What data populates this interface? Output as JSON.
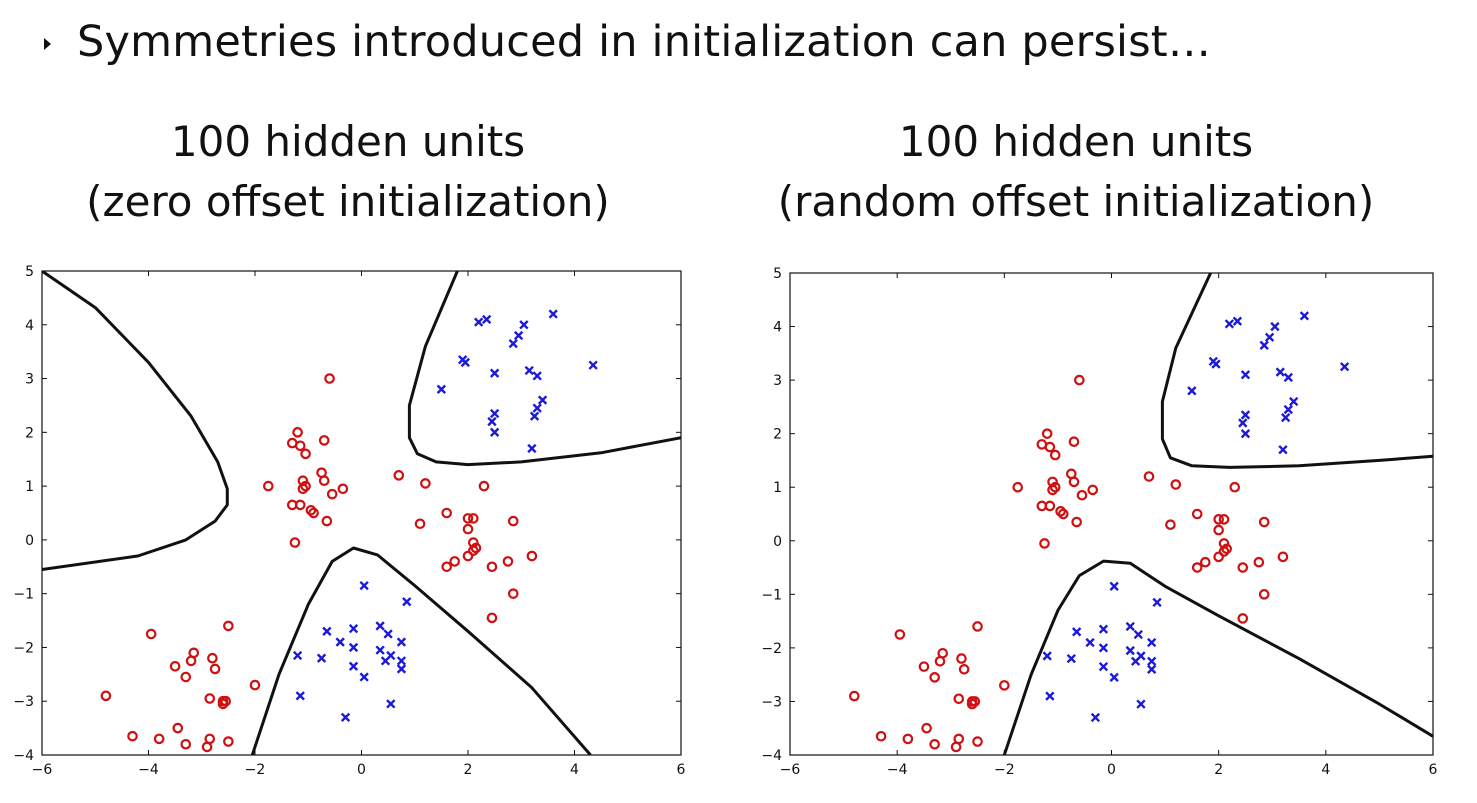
{
  "bullet": {
    "text": "Symmetries introduced in initialization can persist…"
  },
  "colors": {
    "class_o": "#d01010",
    "class_x": "#1a1ad8",
    "boundary": "#111111"
  },
  "chart_data": [
    {
      "type": "scatter",
      "title_line1": "100 hidden units",
      "title_line2": "(zero offset initialization)",
      "xlim": [
        -6,
        6
      ],
      "ylim": [
        -4,
        5
      ],
      "xticks": [
        "−6",
        "−4",
        "−2",
        "0",
        "2",
        "4",
        "6"
      ],
      "yticks": [
        "−4",
        "−3",
        "−2",
        "−1",
        "0",
        "1",
        "2",
        "3",
        "4",
        "5"
      ],
      "grid": false,
      "series": [
        {
          "marker": "circle",
          "color": "#d01010",
          "points": [
            [
              -0.6,
              3.0
            ],
            [
              -1.2,
              2.0
            ],
            [
              -0.7,
              1.85
            ],
            [
              -1.3,
              1.8
            ],
            [
              -1.15,
              1.75
            ],
            [
              -1.05,
              1.6
            ],
            [
              -0.75,
              1.25
            ],
            [
              -0.7,
              1.1
            ],
            [
              -1.1,
              1.1
            ],
            [
              -1.1,
              0.95
            ],
            [
              -1.05,
              1.0
            ],
            [
              -0.55,
              0.85
            ],
            [
              -0.35,
              0.95
            ],
            [
              -1.75,
              1.0
            ],
            [
              -1.3,
              0.65
            ],
            [
              -1.15,
              0.65
            ],
            [
              -0.95,
              0.55
            ],
            [
              -0.9,
              0.5
            ],
            [
              -0.65,
              0.35
            ],
            [
              -1.25,
              -0.05
            ],
            [
              0.7,
              1.2
            ],
            [
              1.2,
              1.05
            ],
            [
              2.3,
              1.0
            ],
            [
              1.1,
              0.3
            ],
            [
              1.6,
              0.5
            ],
            [
              2.0,
              0.4
            ],
            [
              2.1,
              0.4
            ],
            [
              2.85,
              0.35
            ],
            [
              2.0,
              0.2
            ],
            [
              2.1,
              -0.05
            ],
            [
              2.15,
              -0.15
            ],
            [
              2.1,
              -0.2
            ],
            [
              2.0,
              -0.3
            ],
            [
              1.75,
              -0.4
            ],
            [
              1.6,
              -0.5
            ],
            [
              2.45,
              -0.5
            ],
            [
              2.75,
              -0.4
            ],
            [
              3.2,
              -0.3
            ],
            [
              2.85,
              -1.0
            ],
            [
              2.45,
              -1.45
            ],
            [
              -3.95,
              -1.75
            ],
            [
              -2.5,
              -1.6
            ],
            [
              -3.15,
              -2.1
            ],
            [
              -2.8,
              -2.2
            ],
            [
              -3.2,
              -2.25
            ],
            [
              -3.5,
              -2.35
            ],
            [
              -2.75,
              -2.4
            ],
            [
              -3.3,
              -2.55
            ],
            [
              -2.0,
              -2.7
            ],
            [
              -4.8,
              -2.9
            ],
            [
              -2.85,
              -2.95
            ],
            [
              -2.6,
              -3.0
            ],
            [
              -2.55,
              -3.0
            ],
            [
              -2.6,
              -3.05
            ],
            [
              -3.45,
              -3.5
            ],
            [
              -4.3,
              -3.65
            ],
            [
              -3.8,
              -3.7
            ],
            [
              -2.85,
              -3.7
            ],
            [
              -2.5,
              -3.75
            ],
            [
              -3.3,
              -3.8
            ],
            [
              -2.9,
              -3.85
            ]
          ]
        },
        {
          "marker": "cross",
          "color": "#1a1ad8",
          "points": [
            [
              3.6,
              4.2
            ],
            [
              2.2,
              4.05
            ],
            [
              2.35,
              4.1
            ],
            [
              3.05,
              4.0
            ],
            [
              2.95,
              3.8
            ],
            [
              2.85,
              3.65
            ],
            [
              1.9,
              3.35
            ],
            [
              1.95,
              3.3
            ],
            [
              4.35,
              3.25
            ],
            [
              2.5,
              3.1
            ],
            [
              3.15,
              3.15
            ],
            [
              3.3,
              3.05
            ],
            [
              1.5,
              2.8
            ],
            [
              3.4,
              2.6
            ],
            [
              3.3,
              2.45
            ],
            [
              2.5,
              2.35
            ],
            [
              3.25,
              2.3
            ],
            [
              2.45,
              2.2
            ],
            [
              2.5,
              2.0
            ],
            [
              3.2,
              1.7
            ],
            [
              0.05,
              -0.85
            ],
            [
              0.85,
              -1.15
            ],
            [
              -0.65,
              -1.7
            ],
            [
              -0.15,
              -1.65
            ],
            [
              0.35,
              -1.6
            ],
            [
              0.5,
              -1.75
            ],
            [
              -0.4,
              -1.9
            ],
            [
              0.75,
              -1.9
            ],
            [
              -0.15,
              -2.0
            ],
            [
              0.35,
              -2.05
            ],
            [
              0.55,
              -2.15
            ],
            [
              0.75,
              -2.25
            ],
            [
              -1.2,
              -2.15
            ],
            [
              -0.75,
              -2.2
            ],
            [
              0.45,
              -2.25
            ],
            [
              -0.15,
              -2.35
            ],
            [
              0.75,
              -2.4
            ],
            [
              0.05,
              -2.55
            ],
            [
              -1.15,
              -2.9
            ],
            [
              0.55,
              -3.05
            ],
            [
              -0.3,
              -3.3
            ]
          ]
        }
      ],
      "boundaries": [
        [
          [
            -6.0,
            5.0
          ],
          [
            -5.0,
            4.32
          ],
          [
            -4.0,
            3.3
          ],
          [
            -3.2,
            2.3
          ],
          [
            -2.7,
            1.45
          ],
          [
            -2.52,
            0.95
          ],
          [
            -2.52,
            0.65
          ],
          [
            -2.75,
            0.35
          ],
          [
            -3.3,
            0.0
          ],
          [
            -4.2,
            -0.3
          ],
          [
            -6.0,
            -0.55
          ]
        ],
        [
          [
            -2.05,
            -4.0
          ],
          [
            -1.55,
            -2.5
          ],
          [
            -1.0,
            -1.2
          ],
          [
            -0.55,
            -0.4
          ],
          [
            -0.15,
            -0.15
          ],
          [
            0.3,
            -0.28
          ],
          [
            1.0,
            -0.85
          ],
          [
            2.0,
            -1.7
          ],
          [
            3.2,
            -2.75
          ],
          [
            4.3,
            -4.0
          ]
        ],
        [
          [
            1.8,
            5.0
          ],
          [
            1.2,
            3.6
          ],
          [
            0.9,
            2.5
          ],
          [
            0.9,
            1.9
          ],
          [
            1.05,
            1.6
          ],
          [
            1.4,
            1.45
          ],
          [
            2.0,
            1.4
          ],
          [
            3.0,
            1.45
          ],
          [
            4.5,
            1.62
          ],
          [
            6.0,
            1.9
          ]
        ]
      ]
    },
    {
      "type": "scatter",
      "title_line1": "100 hidden units",
      "title_line2": "(random offset initialization)",
      "xlim": [
        -6,
        6
      ],
      "ylim": [
        -4,
        5
      ],
      "xticks": [
        "−6",
        "−4",
        "−2",
        "0",
        "2",
        "4",
        "6"
      ],
      "yticks": [
        "−4",
        "−3",
        "−2",
        "−1",
        "0",
        "1",
        "2",
        "3",
        "4",
        "5"
      ],
      "grid": false,
      "series": [
        {
          "marker": "circle",
          "color": "#d01010",
          "points": [
            [
              -0.6,
              3.0
            ],
            [
              -1.2,
              2.0
            ],
            [
              -0.7,
              1.85
            ],
            [
              -1.3,
              1.8
            ],
            [
              -1.15,
              1.75
            ],
            [
              -1.05,
              1.6
            ],
            [
              -0.75,
              1.25
            ],
            [
              -0.7,
              1.1
            ],
            [
              -1.1,
              1.1
            ],
            [
              -1.1,
              0.95
            ],
            [
              -1.05,
              1.0
            ],
            [
              -0.55,
              0.85
            ],
            [
              -0.35,
              0.95
            ],
            [
              -1.75,
              1.0
            ],
            [
              -1.3,
              0.65
            ],
            [
              -1.15,
              0.65
            ],
            [
              -0.95,
              0.55
            ],
            [
              -0.9,
              0.5
            ],
            [
              -0.65,
              0.35
            ],
            [
              -1.25,
              -0.05
            ],
            [
              0.7,
              1.2
            ],
            [
              1.2,
              1.05
            ],
            [
              2.3,
              1.0
            ],
            [
              1.1,
              0.3
            ],
            [
              1.6,
              0.5
            ],
            [
              2.0,
              0.4
            ],
            [
              2.1,
              0.4
            ],
            [
              2.85,
              0.35
            ],
            [
              2.0,
              0.2
            ],
            [
              2.1,
              -0.05
            ],
            [
              2.15,
              -0.15
            ],
            [
              2.1,
              -0.2
            ],
            [
              2.0,
              -0.3
            ],
            [
              1.75,
              -0.4
            ],
            [
              1.6,
              -0.5
            ],
            [
              2.45,
              -0.5
            ],
            [
              2.75,
              -0.4
            ],
            [
              3.2,
              -0.3
            ],
            [
              2.85,
              -1.0
            ],
            [
              2.45,
              -1.45
            ],
            [
              -3.95,
              -1.75
            ],
            [
              -2.5,
              -1.6
            ],
            [
              -3.15,
              -2.1
            ],
            [
              -2.8,
              -2.2
            ],
            [
              -3.2,
              -2.25
            ],
            [
              -3.5,
              -2.35
            ],
            [
              -2.75,
              -2.4
            ],
            [
              -3.3,
              -2.55
            ],
            [
              -2.0,
              -2.7
            ],
            [
              -4.8,
              -2.9
            ],
            [
              -2.85,
              -2.95
            ],
            [
              -2.6,
              -3.0
            ],
            [
              -2.55,
              -3.0
            ],
            [
              -2.6,
              -3.05
            ],
            [
              -3.45,
              -3.5
            ],
            [
              -4.3,
              -3.65
            ],
            [
              -3.8,
              -3.7
            ],
            [
              -2.85,
              -3.7
            ],
            [
              -2.5,
              -3.75
            ],
            [
              -3.3,
              -3.8
            ],
            [
              -2.9,
              -3.85
            ]
          ]
        },
        {
          "marker": "cross",
          "color": "#1a1ad8",
          "points": [
            [
              3.6,
              4.2
            ],
            [
              2.2,
              4.05
            ],
            [
              2.35,
              4.1
            ],
            [
              3.05,
              4.0
            ],
            [
              2.95,
              3.8
            ],
            [
              2.85,
              3.65
            ],
            [
              1.9,
              3.35
            ],
            [
              1.95,
              3.3
            ],
            [
              4.35,
              3.25
            ],
            [
              2.5,
              3.1
            ],
            [
              3.15,
              3.15
            ],
            [
              3.3,
              3.05
            ],
            [
              1.5,
              2.8
            ],
            [
              3.4,
              2.6
            ],
            [
              3.3,
              2.45
            ],
            [
              2.5,
              2.35
            ],
            [
              3.25,
              2.3
            ],
            [
              2.45,
              2.2
            ],
            [
              2.5,
              2.0
            ],
            [
              3.2,
              1.7
            ],
            [
              0.05,
              -0.85
            ],
            [
              0.85,
              -1.15
            ],
            [
              -0.65,
              -1.7
            ],
            [
              -0.15,
              -1.65
            ],
            [
              0.35,
              -1.6
            ],
            [
              0.5,
              -1.75
            ],
            [
              -0.4,
              -1.9
            ],
            [
              0.75,
              -1.9
            ],
            [
              -0.15,
              -2.0
            ],
            [
              0.35,
              -2.05
            ],
            [
              0.55,
              -2.15
            ],
            [
              0.75,
              -2.25
            ],
            [
              -1.2,
              -2.15
            ],
            [
              -0.75,
              -2.2
            ],
            [
              0.45,
              -2.25
            ],
            [
              -0.15,
              -2.35
            ],
            [
              0.75,
              -2.4
            ],
            [
              0.05,
              -2.55
            ],
            [
              -1.15,
              -2.9
            ],
            [
              0.55,
              -3.05
            ],
            [
              -0.3,
              -3.3
            ]
          ]
        }
      ],
      "boundaries": [
        [
          [
            -2.0,
            -4.0
          ],
          [
            -1.5,
            -2.5
          ],
          [
            -1.0,
            -1.3
          ],
          [
            -0.6,
            -0.65
          ],
          [
            -0.15,
            -0.38
          ],
          [
            0.35,
            -0.42
          ],
          [
            1.0,
            -0.85
          ],
          [
            2.0,
            -1.4
          ],
          [
            3.5,
            -2.2
          ],
          [
            5.0,
            -3.05
          ],
          [
            6.0,
            -3.65
          ]
        ],
        [
          [
            1.85,
            5.0
          ],
          [
            1.2,
            3.6
          ],
          [
            0.95,
            2.6
          ],
          [
            0.95,
            1.9
          ],
          [
            1.1,
            1.55
          ],
          [
            1.5,
            1.4
          ],
          [
            2.2,
            1.37
          ],
          [
            3.5,
            1.4
          ],
          [
            5.0,
            1.5
          ],
          [
            6.0,
            1.58
          ]
        ]
      ]
    }
  ]
}
